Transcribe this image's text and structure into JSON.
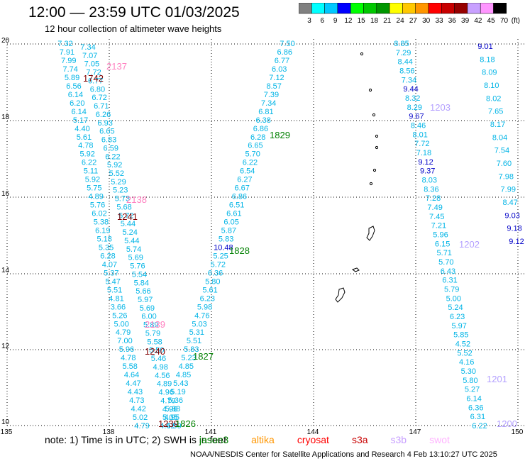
{
  "header": {
    "title": "12:00 — 23:59 UTC 01/03/2025",
    "subtitle": "12 hour collection of altimeter wave heights"
  },
  "scale": {
    "unit": "(ft)",
    "ticks": [
      "3",
      "6",
      "9",
      "12",
      "15",
      "18",
      "21",
      "24",
      "27",
      "30",
      "33",
      "36",
      "39",
      "42",
      "45",
      "70"
    ],
    "colors": [
      "#808080",
      "#00ffff",
      "#00c8ff",
      "#0000ff",
      "#00ff00",
      "#00c800",
      "#009600",
      "#ffff00",
      "#ffc800",
      "#ff9600",
      "#ff0000",
      "#c80000",
      "#960000",
      "#c8a0ff",
      "#ff96ff",
      "#000000"
    ]
  },
  "axes": {
    "lon_labels": [
      "135",
      "138",
      "141",
      "144",
      "147",
      "150"
    ],
    "lat_labels": [
      "10",
      "12",
      "14",
      "16",
      "18",
      "20"
    ]
  },
  "tracks": [
    {
      "name": "track-2137",
      "color": "#00c8ff",
      "label": "2137",
      "label_color": "#ff80c0",
      "values": [
        "7.32",
        "7.91",
        "7.99",
        "7.74",
        "5.89",
        "6.56",
        "6.14",
        "6.20",
        "6.14",
        "5.17",
        "4.40",
        "5.61",
        "4.78",
        "5.92",
        "6.22",
        "5.11",
        "5.92",
        "5.75",
        "4.89",
        "5.76",
        "6.02",
        "5.38",
        "6.19",
        "5.18",
        "5.35",
        "6.28",
        "4.07",
        "5.37",
        "5.47",
        "5.51",
        "4.81",
        "3.66",
        "5.26",
        "5.00",
        "4.79",
        "7.00",
        "5.96",
        "4.78",
        "5.58",
        "4.64",
        "4.47",
        "4.43",
        "4.73",
        "4.42",
        "5.02",
        "4.79"
      ]
    },
    {
      "name": "track-1742",
      "color": "#00c8ff",
      "label": "1742",
      "label_color": "#800000",
      "values": [
        "7.34",
        "7.07",
        "7.05",
        "7.72",
        "6.77",
        "6.80",
        "6.72",
        "6.71",
        "6.26",
        "6.93",
        "6.65",
        "6.83",
        "6.59",
        "6.22",
        "5.92",
        "5.52",
        "5.29",
        "5.23",
        "5.73",
        "5.68",
        "5.72",
        "5.44",
        "5.24",
        "5.44",
        "5.74",
        "5.69",
        "5.76",
        "5.54",
        "5.84",
        "5.66",
        "5.97",
        "5.69",
        "6.00",
        "5.89",
        "5.79",
        "5.58",
        "5.50",
        "5.46",
        "4.98",
        "4.56",
        "4.89",
        "4.96",
        "4.79",
        "4.96",
        "4.95",
        "4.99"
      ]
    },
    {
      "name": "track-1829",
      "color": "#00c8ff",
      "label": "1829",
      "label_color": "#008000",
      "values": [
        "7.50",
        "6.86",
        "6.77",
        "6.03",
        "7.12",
        "8.57",
        "7.39",
        "7.34",
        "6.81",
        "6.38",
        "6.86",
        "6.28",
        "6.65",
        "5.70",
        "6.22",
        "6.54",
        "6.27",
        "6.67",
        "6.86",
        "6.51",
        "6.61",
        "6.05",
        "5.87",
        "5.83",
        "10.48",
        "5.25",
        "5.72",
        "6.36",
        "5.80",
        "5.61",
        "6.23",
        "5.98",
        "4.76",
        "5.03",
        "5.31",
        "5.51",
        "5.83",
        "5.23",
        "4.85",
        "4.85",
        "5.43",
        "5.19",
        "5.36",
        "5.88",
        "5.05",
        "4.62"
      ]
    },
    {
      "name": "track-1203",
      "color": "#00c8ff",
      "label": "1203",
      "label_color": "#b4a0ff",
      "values": [
        "8.85",
        "7.29",
        "8.44",
        "8.56",
        "7.34",
        "9.44",
        "8.32",
        "8.29",
        "9.67",
        "8.46",
        "8.01",
        "7.72",
        "7.18",
        "9.12",
        "9.37",
        "8.03",
        "8.36",
        "7.28",
        "7.49",
        "7.45",
        "7.21",
        "5.96",
        "6.15",
        "5.71",
        "5.70",
        "6.43",
        "6.31",
        "5.79",
        "5.00",
        "5.24",
        "6.23",
        "5.97",
        "5.85",
        "4.52",
        "5.52",
        "4.16",
        "5.30",
        "5.80",
        "5.27",
        "6.14",
        "6.36",
        "6.31",
        "6.22"
      ]
    },
    {
      "name": "track-east",
      "color": "#00c8ff",
      "label": "1202",
      "label_color": "#b4a0ff",
      "values": [
        "9.01",
        "8.18",
        "8.09",
        "8.10",
        "8.02",
        "7.65",
        "8.17",
        "8.04",
        "7.54",
        "7.60",
        "7.98",
        "7.99",
        "8.47",
        "9.03",
        "9.18",
        "9.12"
      ]
    }
  ],
  "extra_labels": [
    {
      "text": "1241",
      "color": "#800000"
    },
    {
      "text": "2138",
      "color": "#ff80c0"
    },
    {
      "text": "1828",
      "color": "#008000"
    },
    {
      "text": "2139",
      "color": "#ff80c0"
    },
    {
      "text": "1240",
      "color": "#800000"
    },
    {
      "text": "1827",
      "color": "#008000"
    },
    {
      "text": "1201",
      "color": "#b4a0ff"
    },
    {
      "text": "1200",
      "color": "#b4a0ff"
    },
    {
      "text": "1239",
      "color": "#800000"
    },
    {
      "text": "1826",
      "color": "#008000"
    }
  ],
  "note": {
    "prefix": "note:  1) Time is in UTC; 2) SWH is in feet",
    "legend": [
      {
        "text": "jason3",
        "color": "#008000"
      },
      {
        "text": "altika",
        "color": "#ff9600"
      },
      {
        "text": "cryosat",
        "color": "#ff0000"
      },
      {
        "text": "s3a",
        "color": "#c80000"
      },
      {
        "text": "s3b",
        "color": "#c8a0ff"
      },
      {
        "text": "swot",
        "color": "#ffb4ff"
      }
    ]
  },
  "footer": "NOAA/NESDIS Center for Satellite Applications and Research     4 Feb 13:10:27 UTC 2025"
}
